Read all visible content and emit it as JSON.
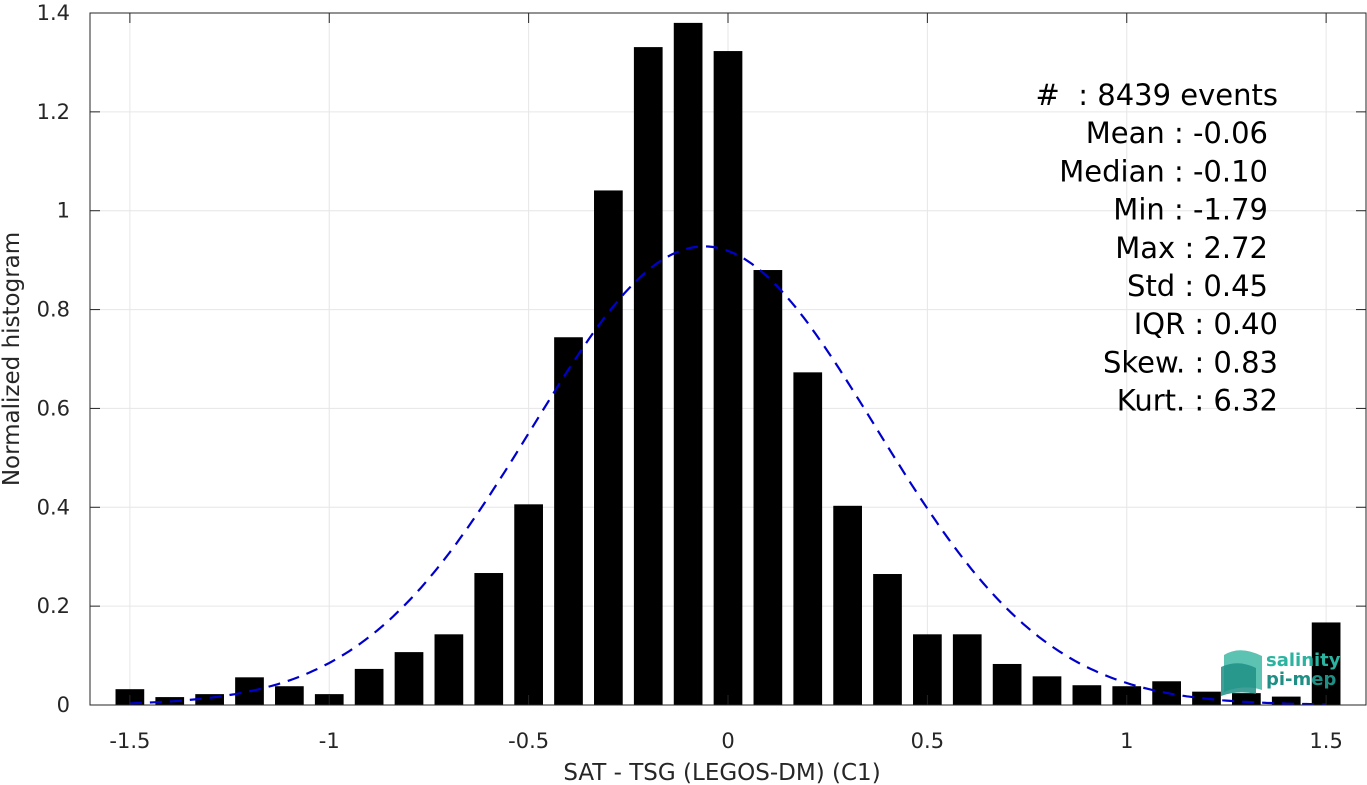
{
  "chart_data": {
    "type": "bar",
    "xlabel": "SAT - TSG (LEGOS-DM) (C1)",
    "ylabel": "Normalized histogram",
    "xlim": [
      -1.6,
      1.6
    ],
    "ylim": [
      0,
      1.4
    ],
    "xticks": [
      -1.5,
      -1,
      -0.5,
      0,
      0.5,
      1,
      1.5
    ],
    "xtick_labels": [
      "-1.5",
      "-1",
      "-0.5",
      "0",
      "0.5",
      "1",
      "1.5"
    ],
    "yticks": [
      0,
      0.2,
      0.4,
      0.6,
      0.8,
      1,
      1.2,
      1.4
    ],
    "ytick_labels": [
      "0",
      "0.2",
      "0.4",
      "0.6",
      "0.8",
      "1",
      "1.2",
      "1.4"
    ],
    "grid": true,
    "bin_width": 0.1,
    "bar_color": "#000000",
    "bins": [
      -1.5,
      -1.4,
      -1.3,
      -1.2,
      -1.1,
      -1.0,
      -0.9,
      -0.8,
      -0.7,
      -0.6,
      -0.5,
      -0.4,
      -0.3,
      -0.2,
      -0.1,
      0.0,
      0.1,
      0.2,
      0.3,
      0.4,
      0.5,
      0.6,
      0.7,
      0.8,
      0.9,
      1.0,
      1.1,
      1.2,
      1.3,
      1.4,
      1.5
    ],
    "values": [
      0.032,
      0.016,
      0.022,
      0.056,
      0.038,
      0.022,
      0.073,
      0.107,
      0.143,
      0.267,
      0.406,
      0.744,
      1.041,
      1.331,
      1.38,
      1.323,
      0.88,
      0.673,
      0.403,
      0.265,
      0.143,
      0.143,
      0.083,
      0.058,
      0.04,
      0.038,
      0.048,
      0.027,
      0.024,
      0.017,
      0.167
    ],
    "fit_curve": {
      "type": "gaussian",
      "mean": -0.06,
      "std": 0.43,
      "color": "#0000cc",
      "style": "dashed"
    }
  },
  "stats": {
    "lines": [
      "#  : 8439 events",
      "Mean : -0.06",
      "Median : -0.10",
      "Min : -1.79",
      "Max : 2.72",
      "Std : 0.45",
      "IQR : 0.40",
      "Skew. : 0.83",
      "Kurt. : 6.32"
    ]
  },
  "logo": {
    "line1": "salinity",
    "line2": "pi-mep",
    "color1": "#2bb3a0",
    "color2": "#1f8f85"
  }
}
